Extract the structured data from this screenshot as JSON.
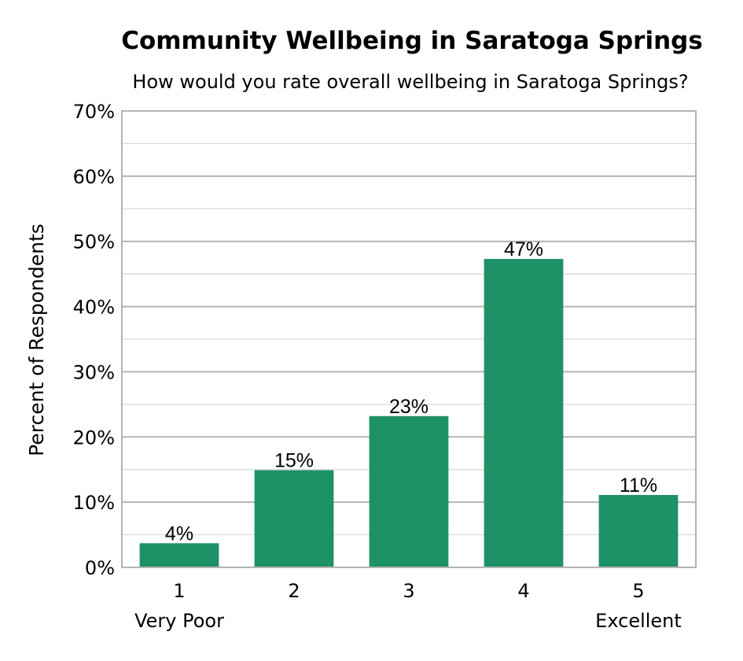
{
  "chart_data": {
    "type": "bar",
    "title": "Community Wellbeing in Saratoga Springs",
    "subtitle": "How would you rate overall wellbeing in Saratoga Springs?",
    "ylabel": "Percent of Respondents",
    "xlabel": "",
    "categories": [
      "1",
      "2",
      "3",
      "4",
      "5"
    ],
    "category_sublabels": [
      "Very Poor",
      "",
      "",
      "",
      "Excellent"
    ],
    "values": [
      3.7,
      14.9,
      23.2,
      47.3,
      11.1
    ],
    "data_labels": [
      "4%",
      "15%",
      "23%",
      "47%",
      "11%"
    ],
    "ylim": [
      0,
      70
    ],
    "yticks": [
      0,
      10,
      20,
      30,
      40,
      50,
      60,
      70
    ],
    "ytick_labels": [
      "0%",
      "10%",
      "20%",
      "30%",
      "40%",
      "50%",
      "60%",
      "70%"
    ],
    "minor_grid_step": 5,
    "grid": true,
    "legend": "none",
    "bar_color": "#1e9166",
    "grid_color": "#b4b4b4"
  }
}
